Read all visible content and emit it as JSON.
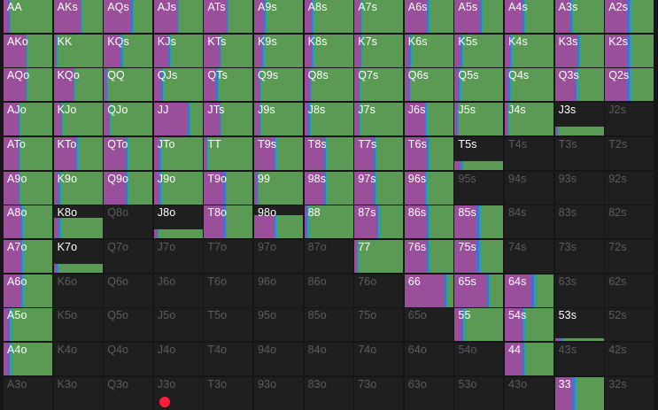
{
  "range_grid": {
    "colors": {
      "raise": "#5a9a55",
      "raise_alt": "#4c8a4a",
      "call": "#9a4f9a",
      "call_alt": "#b05aa6",
      "mix_teal": "#1fa6a0",
      "mix_blue": "#4a6fd0",
      "fold": "#1f1f1f"
    },
    "rows": [
      [
        "AA",
        "AKs",
        "AQs",
        "AJs",
        "ATs",
        "A9s",
        "A8s",
        "A7s",
        "A6s",
        "A5s",
        "A4s",
        "A3s",
        "A2s"
      ],
      [
        "AKo",
        "KK",
        "KQs",
        "KJs",
        "KTs",
        "K9s",
        "K8s",
        "K7s",
        "K6s",
        "K5s",
        "K4s",
        "K3s",
        "K2s"
      ],
      [
        "AQo",
        "KQo",
        "QQ",
        "QJs",
        "QTs",
        "Q9s",
        "Q8s",
        "Q7s",
        "Q6s",
        "Q5s",
        "Q4s",
        "Q3s",
        "Q2s"
      ],
      [
        "AJo",
        "KJo",
        "QJo",
        "JJ",
        "JTs",
        "J9s",
        "J8s",
        "J7s",
        "J6s",
        "J5s",
        "J4s",
        "J3s",
        "J2s"
      ],
      [
        "ATo",
        "KTo",
        "QTo",
        "JTo",
        "TT",
        "T9s",
        "T8s",
        "T7s",
        "T6s",
        "T5s",
        "T4s",
        "T3s",
        "T2s"
      ],
      [
        "A9o",
        "K9o",
        "Q9o",
        "J9o",
        "T9o",
        "99",
        "98s",
        "97s",
        "96s",
        "95s",
        "94s",
        "93s",
        "92s"
      ],
      [
        "A8o",
        "K8o",
        "Q8o",
        "J8o",
        "T8o",
        "98o",
        "88",
        "87s",
        "86s",
        "85s",
        "84s",
        "83s",
        "82s"
      ],
      [
        "A7o",
        "K7o",
        "Q7o",
        "J7o",
        "T7o",
        "97o",
        "87o",
        "77",
        "76s",
        "75s",
        "74s",
        "73s",
        "72s"
      ],
      [
        "A6o",
        "K6o",
        "Q6o",
        "J6o",
        "T6o",
        "96o",
        "86o",
        "76o",
        "66",
        "65s",
        "64s",
        "63s",
        "62s"
      ],
      [
        "A5o",
        "K5o",
        "Q5o",
        "J5o",
        "T5o",
        "95o",
        "85o",
        "75o",
        "65o",
        "55",
        "54s",
        "53s",
        "52s"
      ],
      [
        "A4o",
        "K4o",
        "Q4o",
        "J4o",
        "T4o",
        "94o",
        "84o",
        "74o",
        "64o",
        "54o",
        "44",
        "43s",
        "42s"
      ],
      [
        "A3o",
        "K3o",
        "Q3o",
        "J3o",
        "T3o",
        "93o",
        "83o",
        "73o",
        "63o",
        "53o",
        "43o",
        "33",
        "32s"
      ]
    ],
    "frequencies": [
      [
        [
          0.1,
          0.02,
          0.02,
          0.86
        ],
        [
          0.55,
          0.03,
          0.02,
          0.4
        ],
        [
          0.55,
          0.04,
          0.03,
          0.38
        ],
        [
          0.45,
          0.04,
          0.03,
          0.48
        ],
        [
          0.45,
          0.03,
          0.03,
          0.49
        ],
        [
          0.2,
          0.03,
          0.03,
          0.74
        ],
        [
          0.15,
          0.03,
          0.03,
          0.79
        ],
        [
          0.12,
          0.03,
          0.03,
          0.82
        ],
        [
          0.45,
          0.05,
          0.04,
          0.46
        ],
        [
          0.5,
          0.05,
          0.04,
          0.41
        ],
        [
          0.35,
          0.05,
          0.04,
          0.56
        ],
        [
          0.3,
          0.05,
          0.04,
          0.61
        ],
        [
          0.45,
          0.05,
          0.04,
          0.46
        ]
      ],
      [
        [
          0.45,
          0.03,
          0.03,
          0.49
        ],
        [
          0.05,
          0.02,
          0.02,
          0.91
        ],
        [
          0.35,
          0.03,
          0.03,
          0.59
        ],
        [
          0.3,
          0.03,
          0.03,
          0.64
        ],
        [
          0.3,
          0.03,
          0.03,
          0.64
        ],
        [
          0.15,
          0.03,
          0.03,
          0.79
        ],
        [
          0.15,
          0.03,
          0.03,
          0.79
        ],
        [
          0.12,
          0.03,
          0.03,
          0.82
        ],
        [
          0.1,
          0.03,
          0.03,
          0.84
        ],
        [
          0.12,
          0.03,
          0.03,
          0.82
        ],
        [
          0.1,
          0.03,
          0.03,
          0.84
        ],
        [
          0.45,
          0.05,
          0.04,
          0.46
        ],
        [
          0.45,
          0.05,
          0.04,
          0.46
        ]
      ],
      [
        [
          0.45,
          0.03,
          0.03,
          0.49
        ],
        [
          0.4,
          0.03,
          0.03,
          0.54
        ],
        [
          0.05,
          0.02,
          0.02,
          0.91
        ],
        [
          0.15,
          0.03,
          0.03,
          0.79
        ],
        [
          0.25,
          0.03,
          0.03,
          0.69
        ],
        [
          0.1,
          0.03,
          0.03,
          0.84
        ],
        [
          0.1,
          0.03,
          0.03,
          0.84
        ],
        [
          0.08,
          0.03,
          0.03,
          0.86
        ],
        [
          0.08,
          0.03,
          0.03,
          0.86
        ],
        [
          0.08,
          0.03,
          0.03,
          0.86
        ],
        [
          0.08,
          0.03,
          0.03,
          0.86
        ],
        [
          0.4,
          0.05,
          0.04,
          0.51
        ],
        [
          0.45,
          0.05,
          0.04,
          0.46
        ]
      ],
      [
        [
          0.3,
          0.03,
          0.03,
          0.64
        ],
        [
          0.15,
          0.03,
          0.03,
          0.79
        ],
        [
          0.1,
          0.03,
          0.03,
          0.84
        ],
        [
          0.7,
          0.03,
          0.03,
          0.24
        ],
        [
          0.3,
          0.03,
          0.03,
          0.64
        ],
        [
          0.1,
          0.03,
          0.03,
          0.84
        ],
        [
          0.08,
          0.03,
          0.03,
          0.86
        ],
        [
          0.08,
          0.03,
          0.03,
          0.86
        ],
        [
          0.4,
          0.04,
          0.03,
          0.53
        ],
        [
          0.05,
          0.02,
          0.02,
          0.91
        ],
        [
          0.05,
          0.02,
          0.02,
          0.91
        ],
        [
          0.05,
          0.02,
          0.02,
          0.91
        ],
        [
          0,
          0,
          0,
          0
        ]
      ],
      [
        [
          0.3,
          0.03,
          0.03,
          0.64
        ],
        [
          0.45,
          0.03,
          0.03,
          0.49
        ],
        [
          0.45,
          0.03,
          0.03,
          0.49
        ],
        [
          0.1,
          0.03,
          0.03,
          0.84
        ],
        [
          0.05,
          0.02,
          0.02,
          0.91
        ],
        [
          0.4,
          0.04,
          0.03,
          0.53
        ],
        [
          0.4,
          0.04,
          0.03,
          0.53
        ],
        [
          0.4,
          0.04,
          0.03,
          0.53
        ],
        [
          0.45,
          0.05,
          0.04,
          0.46
        ],
        [
          0.1,
          0.05,
          0.04,
          0.81
        ],
        [
          0,
          0,
          0,
          0
        ],
        [
          0,
          0,
          0,
          0
        ],
        [
          0,
          0,
          0,
          0
        ]
      ],
      [
        [
          0.3,
          0.03,
          0.03,
          0.64
        ],
        [
          0.1,
          0.03,
          0.03,
          0.84
        ],
        [
          0.45,
          0.04,
          0.03,
          0.48
        ],
        [
          0.1,
          0.03,
          0.03,
          0.84
        ],
        [
          0.4,
          0.04,
          0.03,
          0.53
        ],
        [
          0.05,
          0.02,
          0.02,
          0.91
        ],
        [
          0.4,
          0.04,
          0.03,
          0.53
        ],
        [
          0.4,
          0.04,
          0.03,
          0.53
        ],
        [
          0.4,
          0.04,
          0.03,
          0.53
        ],
        [
          0,
          0,
          0,
          0
        ],
        [
          0,
          0,
          0,
          0
        ],
        [
          0,
          0,
          0,
          0
        ],
        [
          0,
          0,
          0,
          0
        ]
      ],
      [
        [
          0.35,
          0.03,
          0.03,
          0.59
        ],
        [
          0.1,
          0.04,
          0.04,
          0.82
        ],
        [
          0,
          0,
          0,
          0
        ],
        [
          0.05,
          0.02,
          0.02,
          0.91
        ],
        [
          0.4,
          0.04,
          0.03,
          0.53
        ],
        [
          0.4,
          0.04,
          0.03,
          0.53
        ],
        [
          0.05,
          0.02,
          0.02,
          0.91
        ],
        [
          0.45,
          0.04,
          0.03,
          0.48
        ],
        [
          0.45,
          0.04,
          0.03,
          0.48
        ],
        [
          0.45,
          0.05,
          0.04,
          0.46
        ],
        [
          0,
          0,
          0,
          0
        ],
        [
          0,
          0,
          0,
          0
        ],
        [
          0,
          0,
          0,
          0
        ]
      ],
      [
        [
          0.35,
          0.03,
          0.03,
          0.59
        ],
        [
          0.05,
          0.03,
          0.03,
          0.89
        ],
        [
          0,
          0,
          0,
          0
        ],
        [
          0,
          0,
          0,
          0
        ],
        [
          0,
          0,
          0,
          0
        ],
        [
          0,
          0,
          0,
          0
        ],
        [
          0,
          0,
          0,
          0
        ],
        [
          0.05,
          0.02,
          0.02,
          0.91
        ],
        [
          0.45,
          0.05,
          0.04,
          0.46
        ],
        [
          0.45,
          0.05,
          0.04,
          0.46
        ],
        [
          0,
          0,
          0,
          0
        ],
        [
          0,
          0,
          0,
          0
        ],
        [
          0,
          0,
          0,
          0
        ]
      ],
      [
        [
          0.35,
          0.03,
          0.03,
          0.59
        ],
        [
          0,
          0,
          0,
          0
        ],
        [
          0,
          0,
          0,
          0
        ],
        [
          0,
          0,
          0,
          0
        ],
        [
          0,
          0,
          0,
          0
        ],
        [
          0,
          0,
          0,
          0
        ],
        [
          0,
          0,
          0,
          0
        ],
        [
          0,
          0,
          0,
          0
        ],
        [
          0.8,
          0.05,
          0.04,
          0.11
        ],
        [
          0.65,
          0.05,
          0.04,
          0.26
        ],
        [
          0.55,
          0.05,
          0.04,
          0.36
        ],
        [
          0,
          0,
          0,
          0
        ],
        [
          0,
          0,
          0,
          0
        ]
      ],
      [
        [
          0.1,
          0.03,
          0.03,
          0.84
        ],
        [
          0,
          0,
          0,
          0
        ],
        [
          0,
          0,
          0,
          0
        ],
        [
          0,
          0,
          0,
          0
        ],
        [
          0,
          0,
          0,
          0
        ],
        [
          0,
          0,
          0,
          0
        ],
        [
          0,
          0,
          0,
          0
        ],
        [
          0,
          0,
          0,
          0
        ],
        [
          0,
          0,
          0,
          0
        ],
        [
          0.15,
          0.03,
          0.03,
          0.79
        ],
        [
          0.35,
          0.04,
          0.04,
          0.57
        ],
        [
          0.1,
          0.05,
          0.05,
          0.8
        ],
        [
          0,
          0,
          0,
          0
        ]
      ],
      [
        [
          0.1,
          0.03,
          0.03,
          0.84
        ],
        [
          0,
          0,
          0,
          0
        ],
        [
          0,
          0,
          0,
          0
        ],
        [
          0,
          0,
          0,
          0
        ],
        [
          0,
          0,
          0,
          0
        ],
        [
          0,
          0,
          0,
          0
        ],
        [
          0,
          0,
          0,
          0
        ],
        [
          0,
          0,
          0,
          0
        ],
        [
          0,
          0,
          0,
          0
        ],
        [
          0,
          0,
          0,
          0
        ],
        [
          0.35,
          0.05,
          0.04,
          0.56
        ],
        [
          0,
          0,
          0,
          0
        ],
        [
          0,
          0,
          0,
          0
        ]
      ],
      [
        [
          0,
          0,
          0,
          0
        ],
        [
          0,
          0,
          0,
          0
        ],
        [
          0,
          0,
          0,
          0
        ],
        [
          0,
          0,
          0,
          0
        ],
        [
          0,
          0,
          0,
          0
        ],
        [
          0,
          0,
          0,
          0
        ],
        [
          0,
          0,
          0,
          0
        ],
        [
          0,
          0,
          0,
          0
        ],
        [
          0,
          0,
          0,
          0
        ],
        [
          0,
          0,
          0,
          0
        ],
        [
          0,
          0,
          0,
          0
        ],
        [
          0.35,
          0.05,
          0.04,
          0.56
        ],
        [
          0,
          0,
          0,
          0
        ]
      ]
    ],
    "partial_heights": {
      "3-11": 0.28,
      "4-9": 0.26,
      "5-11": 0.1,
      "6-1": 0.62,
      "6-3": 0.28,
      "6-5": 0.7,
      "7-1": 0.28,
      "9-11": 0.1
    }
  }
}
